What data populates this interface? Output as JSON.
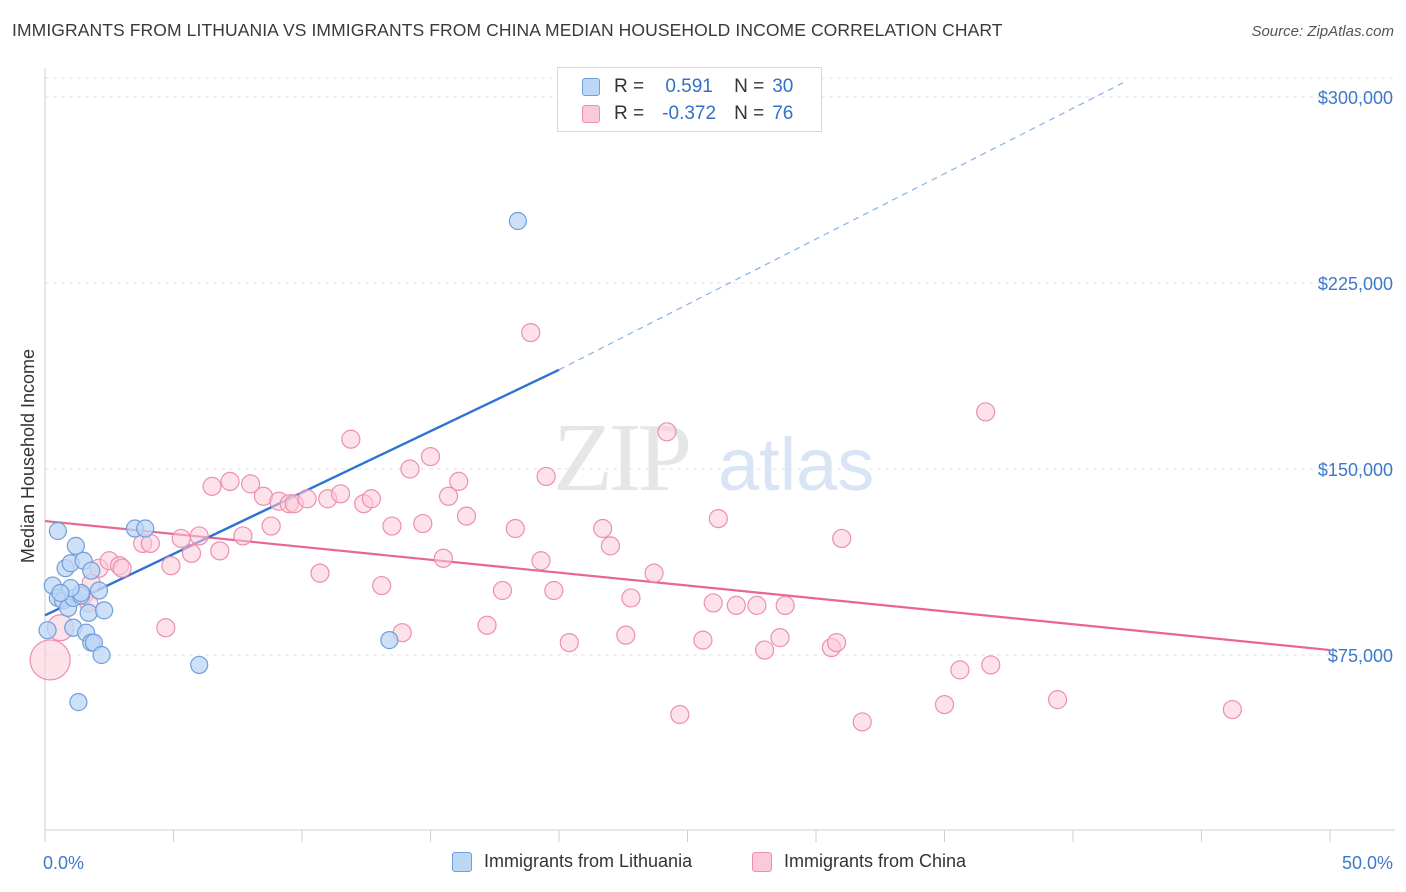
{
  "title": "IMMIGRANTS FROM LITHUANIA VS IMMIGRANTS FROM CHINA MEDIAN HOUSEHOLD INCOME CORRELATION CHART",
  "source": "Source: ZipAtlas.com",
  "watermark": {
    "zip": "ZIP",
    "atlas": "atlas"
  },
  "legend": {
    "lithuania": {
      "r_label": "R =",
      "r_value": "0.591",
      "n_label": "N =",
      "n_value": "30"
    },
    "china": {
      "r_label": "R =",
      "r_value": "-0.372",
      "n_label": "N =",
      "n_value": "76"
    }
  },
  "colors": {
    "lithuania_fill": "#bcd6f5",
    "lithuania_stroke": "#6e9fdc",
    "lithuania_line": "#2f72d4",
    "china_fill": "#fbcad9",
    "china_stroke": "#ec8fb0",
    "china_line": "#e96593",
    "axis_label": "#3d79c9",
    "grid": "#e3e3e3"
  },
  "chart_data": {
    "type": "scatter",
    "xlabel": "",
    "ylabel": "Median Household Income",
    "xlim": [
      0,
      50
    ],
    "ylim": [
      10000,
      310000
    ],
    "x_tick_labels": [
      "0.0%",
      "50.0%"
    ],
    "y_ticks": [
      75000,
      150000,
      225000,
      300000
    ],
    "y_tick_labels": [
      "$75,000",
      "$150,000",
      "$225,000",
      "$300,000"
    ],
    "grid": true,
    "legend_placement": "top-center",
    "series": [
      {
        "name": "Immigrants from Lithuania",
        "points": [
          [
            0.1,
            85000
          ],
          [
            0.3,
            103000
          ],
          [
            0.5,
            98000
          ],
          [
            0.5,
            125000
          ],
          [
            0.7,
            97000
          ],
          [
            0.8,
            110000
          ],
          [
            0.9,
            94000
          ],
          [
            1.0,
            112000
          ],
          [
            1.1,
            98000
          ],
          [
            1.1,
            86000
          ],
          [
            1.2,
            119000
          ],
          [
            1.4,
            99000
          ],
          [
            1.4,
            100000
          ],
          [
            1.5,
            113000
          ],
          [
            1.6,
            84000
          ],
          [
            1.7,
            92000
          ],
          [
            1.8,
            109000
          ],
          [
            1.8,
            80000
          ],
          [
            1.9,
            80000
          ],
          [
            2.1,
            101000
          ],
          [
            2.2,
            75000
          ],
          [
            2.3,
            93000
          ],
          [
            3.5,
            126000
          ],
          [
            3.9,
            126000
          ],
          [
            6.0,
            71000
          ],
          [
            1.3,
            56000
          ],
          [
            13.4,
            81000
          ],
          [
            18.4,
            250000
          ],
          [
            1.0,
            102000
          ],
          [
            0.6,
            100000
          ]
        ],
        "trend": {
          "x": [
            0,
            20
          ],
          "y": [
            91000,
            190000
          ]
        },
        "trend_extension": {
          "x": [
            20,
            42
          ],
          "y": [
            190000,
            306000
          ]
        }
      },
      {
        "name": "Immigrants from China",
        "points": [
          [
            0.2,
            73000
          ],
          [
            0.6,
            86000
          ],
          [
            1.5,
            99000
          ],
          [
            1.7,
            96000
          ],
          [
            1.8,
            104000
          ],
          [
            2.1,
            110000
          ],
          [
            2.5,
            113000
          ],
          [
            2.9,
            111000
          ],
          [
            3.0,
            110000
          ],
          [
            3.8,
            120000
          ],
          [
            4.1,
            120000
          ],
          [
            4.7,
            86000
          ],
          [
            4.9,
            111000
          ],
          [
            5.3,
            122000
          ],
          [
            5.7,
            116000
          ],
          [
            6.0,
            123000
          ],
          [
            6.5,
            143000
          ],
          [
            6.8,
            117000
          ],
          [
            7.2,
            145000
          ],
          [
            7.7,
            123000
          ],
          [
            8.0,
            144000
          ],
          [
            8.5,
            139000
          ],
          [
            8.8,
            127000
          ],
          [
            9.1,
            137000
          ],
          [
            9.5,
            136000
          ],
          [
            9.7,
            136000
          ],
          [
            10.2,
            138000
          ],
          [
            10.7,
            108000
          ],
          [
            11.0,
            138000
          ],
          [
            11.5,
            140000
          ],
          [
            11.9,
            162000
          ],
          [
            12.4,
            136000
          ],
          [
            12.7,
            138000
          ],
          [
            13.1,
            103000
          ],
          [
            13.5,
            127000
          ],
          [
            13.9,
            84000
          ],
          [
            14.2,
            150000
          ],
          [
            14.7,
            128000
          ],
          [
            15.0,
            155000
          ],
          [
            15.5,
            114000
          ],
          [
            15.7,
            139000
          ],
          [
            16.1,
            145000
          ],
          [
            16.4,
            131000
          ],
          [
            17.2,
            87000
          ],
          [
            17.8,
            101000
          ],
          [
            18.3,
            126000
          ],
          [
            18.9,
            205000
          ],
          [
            19.3,
            113000
          ],
          [
            19.5,
            147000
          ],
          [
            19.8,
            101000
          ],
          [
            20.4,
            80000
          ],
          [
            21.7,
            126000
          ],
          [
            22.0,
            119000
          ],
          [
            22.6,
            83000
          ],
          [
            22.8,
            98000
          ],
          [
            23.7,
            108000
          ],
          [
            24.2,
            165000
          ],
          [
            24.7,
            51000
          ],
          [
            25.6,
            81000
          ],
          [
            26.0,
            96000
          ],
          [
            26.2,
            130000
          ],
          [
            26.9,
            95000
          ],
          [
            27.7,
            95000
          ],
          [
            28.0,
            77000
          ],
          [
            28.6,
            82000
          ],
          [
            28.8,
            95000
          ],
          [
            30.6,
            78000
          ],
          [
            30.8,
            80000
          ],
          [
            31.0,
            122000
          ],
          [
            31.8,
            48000
          ],
          [
            35.0,
            55000
          ],
          [
            35.6,
            69000
          ],
          [
            36.6,
            173000
          ],
          [
            36.8,
            71000
          ],
          [
            39.4,
            57000
          ],
          [
            46.2,
            53000
          ]
        ],
        "trend": {
          "x": [
            0,
            50
          ],
          "y": [
            129000,
            77000
          ]
        }
      }
    ]
  },
  "bottom_legend": {
    "lithuania": "Immigrants from Lithuania",
    "china": "Immigrants from China"
  }
}
